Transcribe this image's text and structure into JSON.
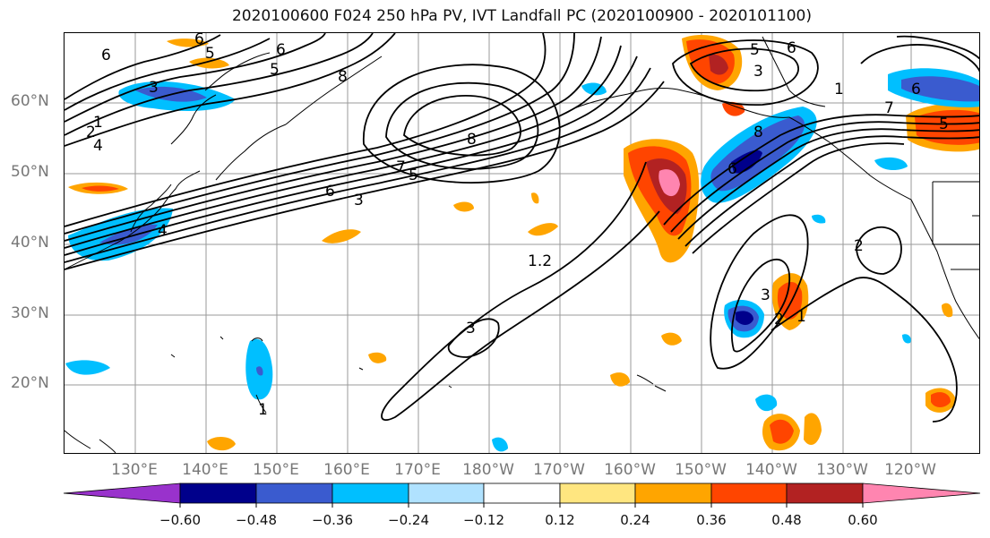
{
  "title": "2020100600 F024 250 hPa PV, IVT Landfall PC (2020100900 - 2020101100)",
  "latitude_labels": [
    "60°N",
    "50°N",
    "40°N",
    "30°N",
    "20°N"
  ],
  "longitude_labels": [
    "130°E",
    "140°E",
    "150°E",
    "160°E",
    "170°E",
    "180°W",
    "170°W",
    "160°W",
    "150°W",
    "140°W",
    "130°W",
    "120°W"
  ],
  "colorbar": {
    "ticks": [
      "−0.60",
      "−0.48",
      "−0.36",
      "−0.24",
      "−0.12",
      "0.12",
      "0.24",
      "0.36",
      "0.48",
      "0.60"
    ],
    "colors": [
      "#9932cc",
      "#00008b",
      "#3a5bcf",
      "#00bfff",
      "#b0e2ff",
      "#ffffff",
      "#ffe680",
      "#ffa500",
      "#ff4500",
      "#b22222",
      "#ff85b0"
    ]
  },
  "contour_labels": [
    "6",
    "6",
    "5",
    "5",
    "6",
    "3",
    "8",
    "1",
    "2",
    "4",
    "8",
    "7",
    "5",
    "6",
    "3",
    "4",
    "1.2",
    "3",
    "8",
    "6",
    "6",
    "5",
    "3",
    "1",
    "7",
    "5",
    "2",
    "3",
    "1",
    "1",
    "6",
    "2"
  ]
}
